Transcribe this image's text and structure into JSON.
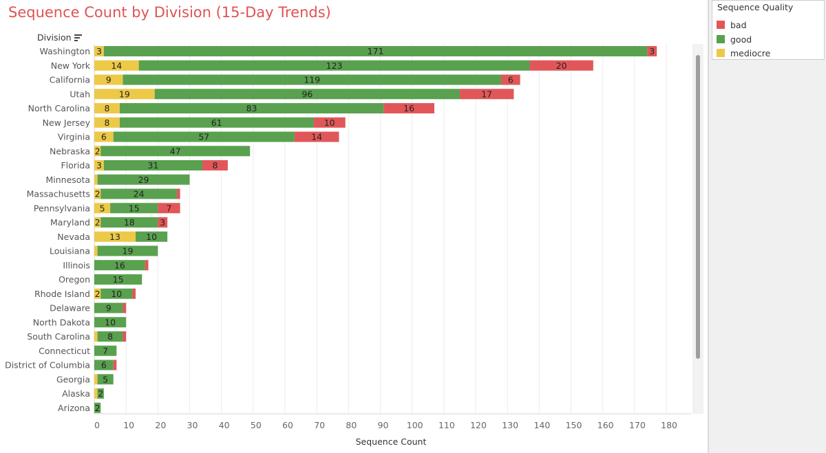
{
  "colors": {
    "bad": "#e15759",
    "good": "#59a14f",
    "mediocre": "#edc948",
    "title": "#e05252"
  },
  "chart_data": {
    "type": "bar",
    "orientation": "horizontal",
    "stacked": true,
    "title": "Sequence Count by Division (15-Day Trends)",
    "xlabel": "Sequence Count",
    "ylabel": "Division",
    "xlim": [
      0,
      180
    ],
    "xticks": [
      0,
      10,
      20,
      30,
      40,
      50,
      60,
      70,
      80,
      90,
      100,
      110,
      120,
      130,
      140,
      150,
      160,
      170,
      180
    ],
    "grid": "vertical",
    "legend": {
      "title": "Sequence Quality",
      "placement": "top-right",
      "entries": [
        "bad",
        "good",
        "mediocre"
      ]
    },
    "categories": [
      "Washington",
      "New York",
      "California",
      "Utah",
      "North Carolina",
      "New Jersey",
      "Virginia",
      "Nebraska",
      "Florida",
      "Minnesota",
      "Massachusetts",
      "Pennsylvania",
      "Maryland",
      "Nevada",
      "Louisiana",
      "Illinois",
      "Oregon",
      "Rhode Island",
      "Delaware",
      "North Dakota",
      "South Carolina",
      "Connecticut",
      "District of Columbia",
      "Georgia",
      "Alaska",
      "Arizona"
    ],
    "series": [
      {
        "name": "mediocre",
        "values": [
          3,
          14,
          9,
          19,
          8,
          8,
          6,
          2,
          3,
          1,
          2,
          5,
          2,
          13,
          1,
          0,
          0,
          2,
          0,
          0,
          1,
          0,
          0,
          1,
          1,
          0
        ]
      },
      {
        "name": "good",
        "values": [
          171,
          123,
          119,
          96,
          83,
          61,
          57,
          47,
          31,
          29,
          24,
          15,
          18,
          10,
          19,
          16,
          15,
          10,
          9,
          10,
          8,
          7,
          6,
          5,
          2,
          2
        ]
      },
      {
        "name": "bad",
        "values": [
          3,
          20,
          6,
          17,
          16,
          10,
          14,
          0,
          8,
          0,
          1,
          7,
          3,
          0,
          0,
          1,
          0,
          1,
          1,
          0,
          1,
          0,
          1,
          0,
          0,
          0
        ]
      }
    ],
    "labels": [
      {
        "mediocre": "3",
        "good": "171",
        "bad": "3"
      },
      {
        "mediocre": "14",
        "good": "123",
        "bad": "20"
      },
      {
        "mediocre": "9",
        "good": "119",
        "bad": "6"
      },
      {
        "mediocre": "19",
        "good": "96",
        "bad": "17"
      },
      {
        "mediocre": "8",
        "good": "83",
        "bad": "16"
      },
      {
        "mediocre": "8",
        "good": "61",
        "bad": "10"
      },
      {
        "mediocre": "6",
        "good": "57",
        "bad": "14"
      },
      {
        "mediocre": "2",
        "good": "47"
      },
      {
        "mediocre": "3",
        "good": "31",
        "bad": "8"
      },
      {
        "good": "29"
      },
      {
        "mediocre": "2",
        "good": "24"
      },
      {
        "mediocre": "5",
        "good": "15",
        "bad": "7"
      },
      {
        "mediocre": "2",
        "good": "18",
        "bad": "3"
      },
      {
        "mediocre": "13",
        "good": "10"
      },
      {
        "good": "19"
      },
      {
        "good": "16"
      },
      {
        "good": "15"
      },
      {
        "mediocre": "2",
        "good": "10"
      },
      {
        "good": "9"
      },
      {
        "good": "10"
      },
      {
        "good": "8"
      },
      {
        "good": "7"
      },
      {
        "good": "6"
      },
      {
        "good": "5"
      },
      {
        "good": "2"
      },
      {
        "good": "2"
      }
    ]
  }
}
